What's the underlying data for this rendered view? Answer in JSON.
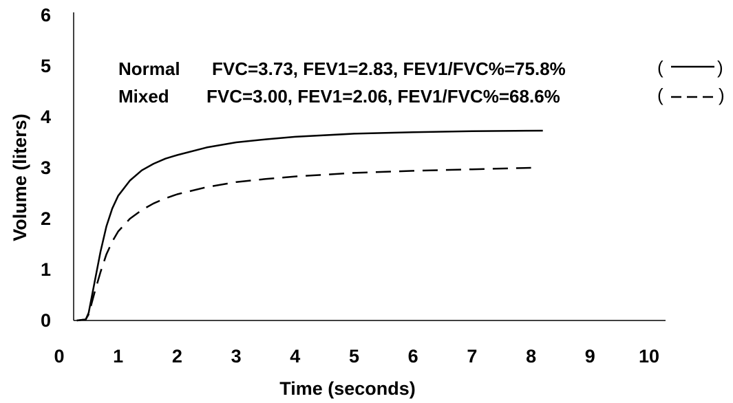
{
  "chart_data": {
    "type": "line",
    "title": "",
    "xlabel": "Time (seconds)",
    "ylabel": "Volume (liters)",
    "xlim": [
      0,
      10
    ],
    "ylim": [
      0,
      6
    ],
    "x_ticks": [
      "0",
      "1",
      "2",
      "3",
      "4",
      "5",
      "6",
      "7",
      "8",
      "9",
      "10"
    ],
    "y_ticks": [
      "0",
      "1",
      "2",
      "3",
      "4",
      "5",
      "6"
    ],
    "grid": false,
    "legend_position": "top-right",
    "series": [
      {
        "name": "Normal",
        "legend_text": "FVC=3.73, FEV1=2.83, FEV1/FVC%=75.8%",
        "line_style": "solid",
        "color": "#000000",
        "x": [
          0.3,
          0.45,
          0.5,
          0.6,
          0.7,
          0.8,
          0.9,
          1.0,
          1.2,
          1.4,
          1.6,
          1.8,
          2.0,
          2.5,
          3.0,
          3.5,
          4.0,
          5.0,
          6.0,
          7.0,
          8.2
        ],
        "y": [
          0.0,
          0.02,
          0.15,
          0.75,
          1.35,
          1.85,
          2.2,
          2.45,
          2.75,
          2.95,
          3.08,
          3.18,
          3.25,
          3.4,
          3.5,
          3.56,
          3.61,
          3.67,
          3.7,
          3.72,
          3.73
        ]
      },
      {
        "name": "Mixed",
        "legend_text": "FVC=3.00, FEV1=2.06, FEV1/FVC%=68.6%",
        "line_style": "dashed",
        "color": "#000000",
        "x": [
          0.3,
          0.45,
          0.5,
          0.6,
          0.7,
          0.8,
          0.9,
          1.0,
          1.2,
          1.4,
          1.6,
          1.8,
          2.0,
          2.5,
          3.0,
          3.5,
          4.0,
          5.0,
          6.0,
          7.0,
          8.0
        ],
        "y": [
          0.0,
          0.02,
          0.12,
          0.55,
          0.95,
          1.3,
          1.55,
          1.75,
          2.0,
          2.17,
          2.3,
          2.4,
          2.48,
          2.62,
          2.72,
          2.78,
          2.83,
          2.9,
          2.94,
          2.97,
          3.0
        ]
      }
    ]
  }
}
